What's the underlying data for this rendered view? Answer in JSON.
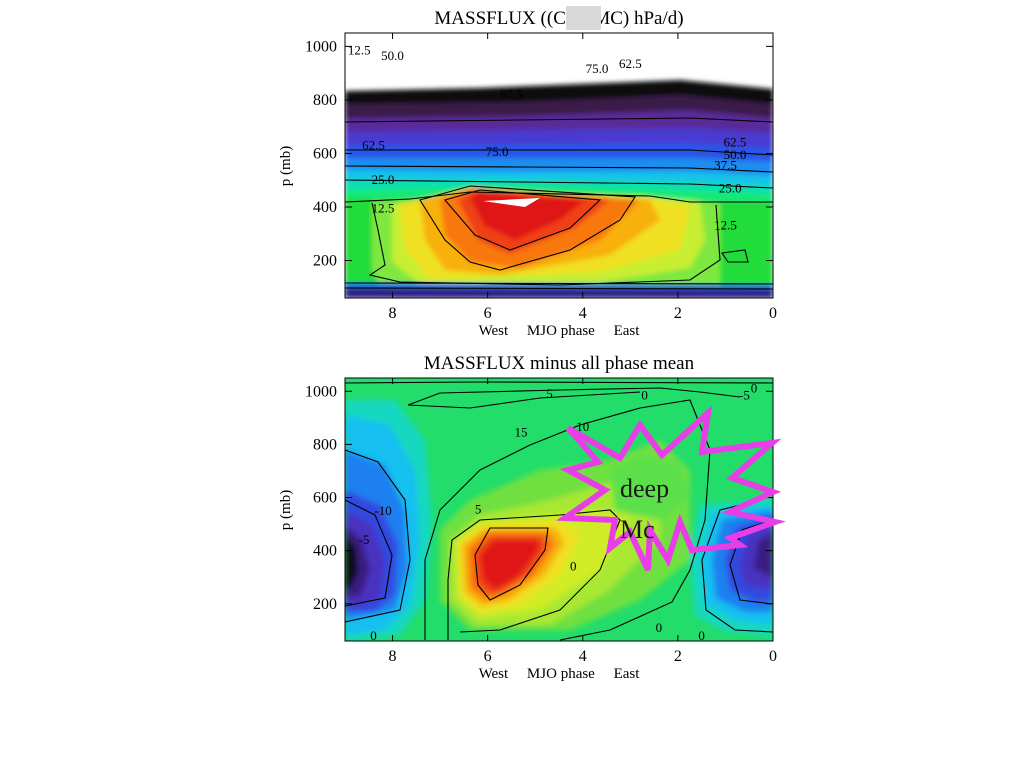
{
  "chart_data": [
    {
      "type": "heatmap",
      "title_pre": "MASSFLUX ((",
      "title_hl": "CMFMC",
      "title_post": ") hPa/d)",
      "xlabel": "West     MJO phase     East",
      "ylabel": "p (mb)",
      "xlim": [
        9,
        0
      ],
      "ylim": [
        1050,
        60
      ],
      "x_ticks": [
        "8",
        "6",
        "4",
        "2",
        "0"
      ],
      "y_ticks": [
        "200",
        "400",
        "600",
        "800",
        "1000"
      ],
      "contour_labels": [
        {
          "text": "12.5",
          "x": 8.2,
          "p": 395
        },
        {
          "text": "12.5",
          "x": 1.0,
          "p": 330
        },
        {
          "text": "25.0",
          "x": 8.2,
          "p": 500
        },
        {
          "text": "25.0",
          "x": 0.9,
          "p": 470
        },
        {
          "text": "37.5",
          "x": 1.0,
          "p": 555
        },
        {
          "text": "50.0",
          "x": 0.8,
          "p": 595
        },
        {
          "text": "62.5",
          "x": 8.4,
          "p": 630
        },
        {
          "text": "62.5",
          "x": 0.8,
          "p": 640
        },
        {
          "text": "75.0",
          "x": 5.8,
          "p": 605
        },
        {
          "text": "87.5",
          "x": 5.5,
          "p": 820
        },
        {
          "text": "75.0",
          "x": 3.7,
          "p": 915
        },
        {
          "text": "62.5",
          "x": 3.0,
          "p": 935
        },
        {
          "text": "50.0",
          "x": 8.0,
          "p": 965
        },
        {
          "text": "12.5",
          "x": 8.7,
          "p": 985
        }
      ]
    },
    {
      "type": "heatmap",
      "title": "MASSFLUX minus all phase mean",
      "xlabel": "West     MJO phase     East",
      "ylabel": "p (mb)",
      "xlim": [
        9,
        0
      ],
      "ylim": [
        1050,
        60
      ],
      "x_ticks": [
        "8",
        "6",
        "4",
        "2",
        "0"
      ],
      "y_ticks": [
        "200",
        "400",
        "600",
        "800",
        "1000"
      ],
      "contour_labels": [
        {
          "text": "0",
          "x": 8.4,
          "p": 78
        },
        {
          "text": "0",
          "x": 2.4,
          "p": 108
        },
        {
          "text": "0",
          "x": 1.5,
          "p": 78
        },
        {
          "text": "0",
          "x": 4.2,
          "p": 340
        },
        {
          "text": "-5",
          "x": 8.6,
          "p": 440
        },
        {
          "text": "-10",
          "x": 8.2,
          "p": 550
        },
        {
          "text": "5",
          "x": 6.2,
          "p": 555
        },
        {
          "text": "15",
          "x": 5.3,
          "p": 845
        },
        {
          "text": "10",
          "x": 4.0,
          "p": 865
        },
        {
          "text": "5",
          "x": 4.7,
          "p": 990
        },
        {
          "text": "0",
          "x": 2.7,
          "p": 985
        },
        {
          "text": "-5",
          "x": 0.6,
          "p": 985
        },
        {
          "text": "0",
          "x": 0.4,
          "p": 1010
        }
      ],
      "annotation": {
        "line1": "deep",
        "line2": "Mc",
        "color": "#e83ee8"
      }
    }
  ]
}
